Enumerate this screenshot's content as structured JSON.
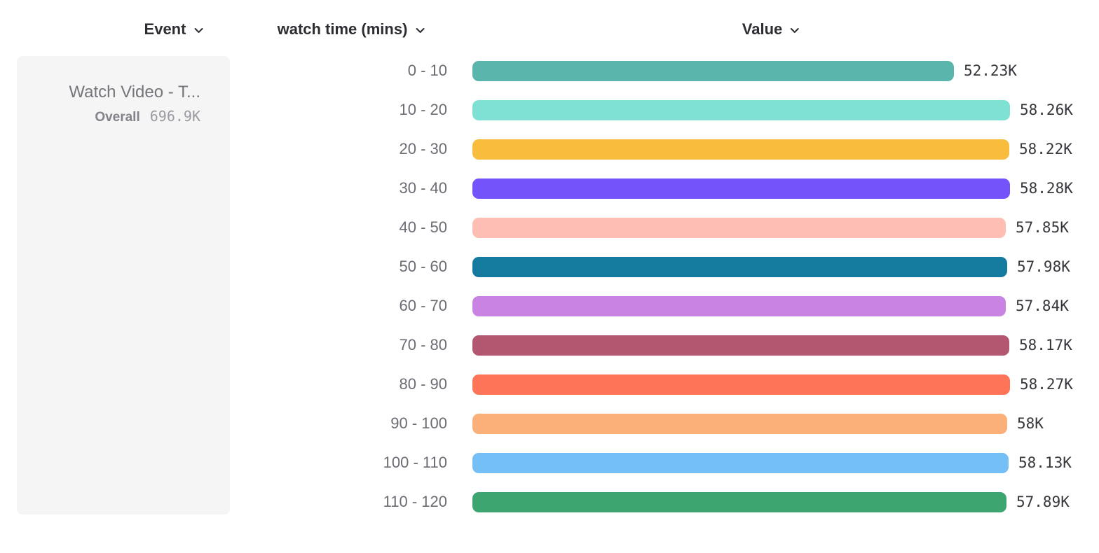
{
  "header": {
    "columns": [
      {
        "label": "Event"
      },
      {
        "label": "watch time (mins)"
      },
      {
        "label": "Value"
      }
    ]
  },
  "event_card": {
    "title": "Watch Video - T...",
    "overall_label": "Overall",
    "overall_value": "696.9K"
  },
  "icons": {
    "chevron_down": "chevron-down"
  },
  "chart_data": {
    "type": "bar",
    "orientation": "horizontal",
    "title": "",
    "xlabel": "Value",
    "ylabel": "watch time (mins)",
    "categories": [
      "0 - 10",
      "10 - 20",
      "20 - 30",
      "30 - 40",
      "40 - 50",
      "50 - 60",
      "60 - 70",
      "70 - 80",
      "80 - 90",
      "90 - 100",
      "100 - 110",
      "110 - 120"
    ],
    "values": [
      52230,
      58260,
      58220,
      58280,
      57850,
      57980,
      57840,
      58170,
      58270,
      58000,
      58130,
      57890
    ],
    "value_labels": [
      "52.23K",
      "58.26K",
      "58.22K",
      "58.28K",
      "57.85K",
      "57.98K",
      "57.84K",
      "58.17K",
      "58.27K",
      "58K",
      "58.13K",
      "57.89K"
    ],
    "colors": [
      "#5AB5AD",
      "#7FE0D4",
      "#F8BD3D",
      "#7453FB",
      "#FFBEB3",
      "#147A9E",
      "#C983E3",
      "#B2576F",
      "#FE7458",
      "#FBB079",
      "#74BFF5",
      "#3DA56F"
    ],
    "xlim": [
      0,
      58280
    ],
    "grid": false,
    "legend": false
  }
}
